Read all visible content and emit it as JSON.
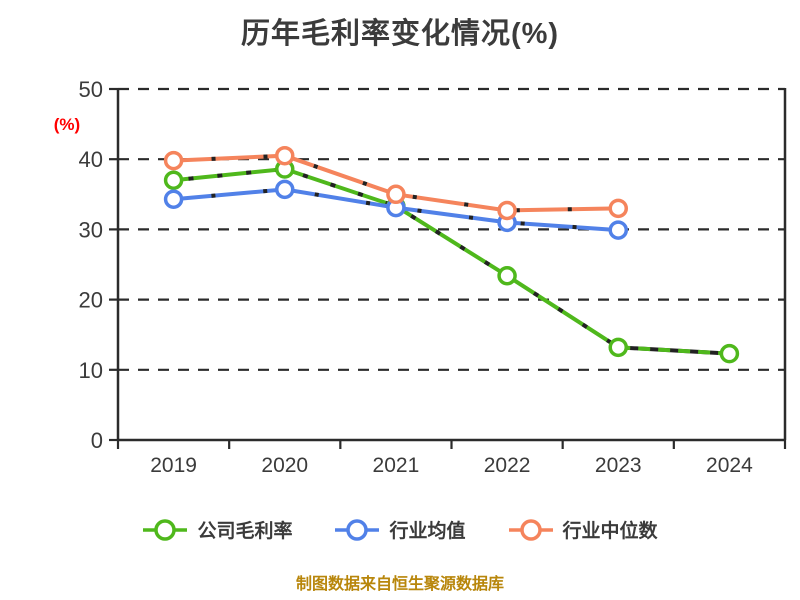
{
  "page": {
    "background": "#ffffff"
  },
  "chart_data": {
    "type": "line",
    "title": "历年毛利率变化情况(%)",
    "title_color": "#3b3b3b",
    "ylabel": "(%)",
    "ylabel_color": "#ff0000",
    "categories": [
      "2019",
      "2020",
      "2021",
      "2022",
      "2023",
      "2024"
    ],
    "yticks": [
      0,
      10,
      20,
      30,
      40,
      50
    ],
    "ylim": [
      0,
      50
    ],
    "grid": "horizontal-dashed",
    "axis_color": "#2b2b2b",
    "tick_label_color": "#3b3b3b",
    "legend_position": "bottom",
    "series": [
      {
        "id": "company-gross-margin",
        "name": "公司毛利率",
        "color": "#4FB81C",
        "values": [
          37.0,
          38.6,
          33.3,
          23.4,
          13.2,
          12.3
        ],
        "style": "solid-with-dark-flecks",
        "last_segment": "dashed"
      },
      {
        "id": "industry-mean",
        "name": "行业均值",
        "color": "#5181E8",
        "values": [
          34.3,
          35.7,
          33.1,
          31.0,
          29.9,
          null
        ],
        "style": "solid-with-dark-flecks",
        "last_segment": "none"
      },
      {
        "id": "industry-median",
        "name": "行业中位数",
        "color": "#F5845C",
        "values": [
          39.8,
          40.5,
          35.0,
          32.7,
          33.0,
          null
        ],
        "style": "solid-with-dark-flecks",
        "last_segment": "none"
      }
    ],
    "footnote": "制图数据来自恒生聚源数据库",
    "footnote_color": "#B8860B",
    "marker": {
      "shape": "circle",
      "fill": "#ffffff"
    }
  }
}
